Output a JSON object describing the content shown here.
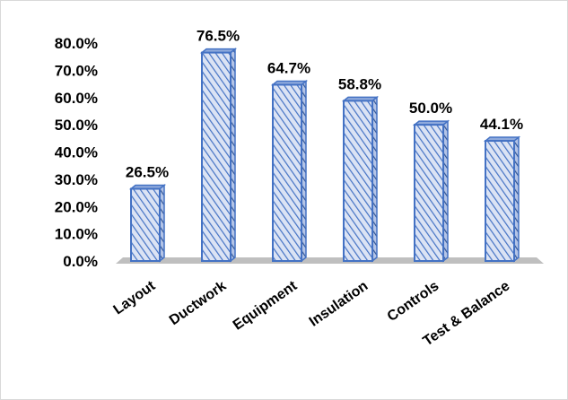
{
  "chart_data": {
    "type": "bar",
    "style": "3d-column",
    "categories": [
      "Layout",
      "Ductwork",
      "Equipment",
      "Insulation",
      "Controls",
      "Test & Balance"
    ],
    "values": [
      26.5,
      76.5,
      64.7,
      58.8,
      50.0,
      44.1
    ],
    "data_labels": [
      "26.5%",
      "76.5%",
      "64.7%",
      "58.8%",
      "50.0%",
      "44.1%"
    ],
    "yticks": [
      "0.0%",
      "10.0%",
      "20.0%",
      "30.0%",
      "40.0%",
      "50.0%",
      "60.0%",
      "70.0%",
      "80.0%"
    ],
    "ylim": [
      0,
      80
    ],
    "title": "",
    "xlabel": "",
    "ylabel": "",
    "grid": false,
    "legend": "none",
    "colors": {
      "bar_fill": "#dbe3f4",
      "bar_hatch": "#4472c4",
      "bar_outline": "#4472c4",
      "floor": "#bfbfbf",
      "text": "#000000"
    }
  }
}
